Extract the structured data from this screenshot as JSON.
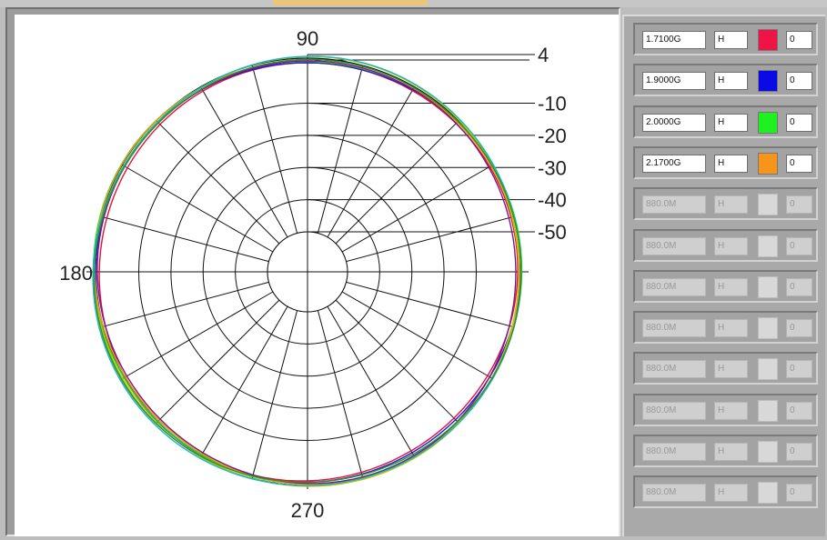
{
  "chart_data": {
    "type": "polar",
    "angle_labels": [
      "90",
      "180",
      "270"
    ],
    "radial_scale": {
      "labels": [
        "4",
        "-10",
        "-20",
        "-30",
        "-40",
        "-50"
      ],
      "values": [
        4,
        -10,
        -20,
        -30,
        -40,
        -50
      ]
    },
    "series": [
      {
        "name": "1.7100G",
        "color": "#e8103a",
        "level": -1.0
      },
      {
        "name": "1.9000G",
        "color": "#1a1adb",
        "level": -0.3
      },
      {
        "name": "2.0000G",
        "color": "#17e51e",
        "level": 0.3
      },
      {
        "name": "2.1700G",
        "color": "#f49a16",
        "level": 0.1
      }
    ],
    "extra_trace_colors": [
      "#7a1a86",
      "#c7c400",
      "#1ab6c4",
      "#2f8f2f"
    ]
  },
  "side_panel": {
    "rows": [
      {
        "freq": "1.7100G",
        "pol": "H",
        "value": "0",
        "color": "#ef1446",
        "enabled": true
      },
      {
        "freq": "1.9000G",
        "pol": "H",
        "value": "0",
        "color": "#0a0ae6",
        "enabled": true
      },
      {
        "freq": "2.0000G",
        "pol": "H",
        "value": "0",
        "color": "#1ff01f",
        "enabled": true
      },
      {
        "freq": "2.1700G",
        "pol": "H",
        "value": "0",
        "color": "#f7941a",
        "enabled": true
      },
      {
        "freq": "880.0M",
        "pol": "H",
        "value": "0",
        "color": "#d8d8d8",
        "enabled": false
      },
      {
        "freq": "880.0M",
        "pol": "H",
        "value": "0",
        "color": "#d8d8d8",
        "enabled": false
      },
      {
        "freq": "880.0M",
        "pol": "H",
        "value": "0",
        "color": "#d8d8d8",
        "enabled": false
      },
      {
        "freq": "880.0M",
        "pol": "H",
        "value": "0",
        "color": "#d8d8d8",
        "enabled": false
      },
      {
        "freq": "880.0M",
        "pol": "H",
        "value": "0",
        "color": "#d8d8d8",
        "enabled": false
      },
      {
        "freq": "880.0M",
        "pol": "H",
        "value": "0",
        "color": "#d8d8d8",
        "enabled": false
      },
      {
        "freq": "880.0M",
        "pol": "H",
        "value": "0",
        "color": "#d8d8d8",
        "enabled": false
      },
      {
        "freq": "880.0M",
        "pol": "H",
        "value": "0",
        "color": "#d8d8d8",
        "enabled": false
      }
    ]
  }
}
